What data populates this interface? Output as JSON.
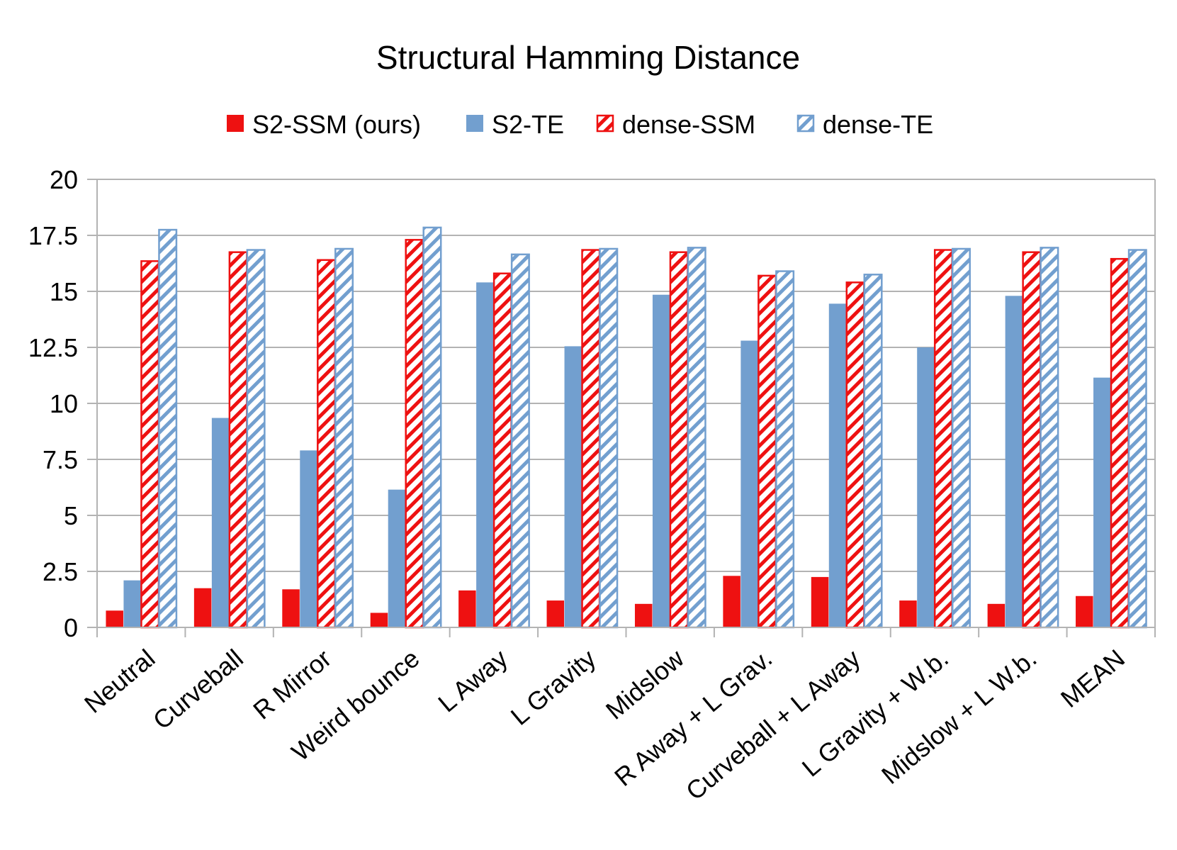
{
  "chart_data": {
    "type": "bar",
    "title": "Structural Hamming Distance",
    "xlabel": "",
    "ylabel": "",
    "ylim": [
      0,
      20
    ],
    "yticks": [
      0,
      2.5,
      5,
      7.5,
      10,
      12.5,
      15,
      17.5,
      20
    ],
    "ytick_labels": [
      "0",
      "2.5",
      "5",
      "7.5",
      "10",
      "12.5",
      "15",
      "17.5",
      "20"
    ],
    "grid": true,
    "legend_position": "top",
    "categories": [
      "Neutral",
      "Curveball",
      "R Mirror",
      "Weird bounce",
      "L Away",
      "L Gravity",
      "Midslow",
      "R Away + L Grav.",
      "Curveball + L Away",
      "L Gravity + W.b.",
      "Midslow + L W.b.",
      "MEAN"
    ],
    "series": [
      {
        "name": "S2-SSM (ours)",
        "style": "solid",
        "color": "#ee1111",
        "values": [
          0.75,
          1.75,
          1.7,
          0.65,
          1.65,
          1.2,
          1.05,
          2.3,
          2.25,
          1.2,
          1.05,
          1.4
        ]
      },
      {
        "name": "S2-TE",
        "style": "solid",
        "color": "#729fcf",
        "values": [
          2.1,
          9.35,
          7.9,
          6.15,
          15.4,
          12.55,
          14.85,
          12.8,
          14.45,
          12.5,
          14.8,
          11.15
        ]
      },
      {
        "name": "dense-SSM",
        "style": "hatched",
        "color": "#ee1111",
        "values": [
          16.35,
          16.75,
          16.4,
          17.3,
          15.8,
          16.85,
          16.75,
          15.7,
          15.4,
          16.85,
          16.75,
          16.45
        ]
      },
      {
        "name": "dense-TE",
        "style": "hatched",
        "color": "#729fcf",
        "values": [
          17.75,
          16.85,
          16.9,
          17.85,
          16.65,
          16.9,
          16.95,
          15.9,
          15.75,
          16.9,
          16.95,
          16.85
        ]
      }
    ]
  }
}
